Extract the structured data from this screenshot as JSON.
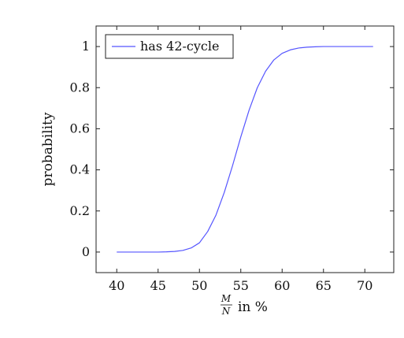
{
  "chart_data": {
    "type": "line",
    "xlabel": {
      "frac_num": "M",
      "frac_den": "N",
      "suffix": "in %"
    },
    "ylabel": "probability",
    "xlim": [
      37.5,
      73.5
    ],
    "ylim": [
      -0.1,
      1.1
    ],
    "xticks": [
      40,
      45,
      50,
      55,
      60,
      65,
      70
    ],
    "xtick_labels": [
      "40",
      "45",
      "50",
      "55",
      "60",
      "65",
      "70"
    ],
    "yticks": [
      0,
      0.2,
      0.4,
      0.6,
      0.8,
      1
    ],
    "ytick_labels": [
      "0",
      "0.2",
      "0.4",
      "0.6",
      "0.8",
      "1"
    ],
    "grid": false,
    "legend_position": "top-left",
    "series": [
      {
        "name": "has 42-cycle",
        "color": "#5555ff",
        "x": [
          40,
          41,
          42,
          43,
          44,
          45,
          46,
          47,
          48,
          49,
          50,
          51,
          52,
          53,
          54,
          55,
          56,
          57,
          58,
          59,
          60,
          61,
          62,
          63,
          64,
          65,
          66,
          67,
          68,
          69,
          70,
          71
        ],
        "y": [
          0,
          0,
          0,
          0,
          0,
          0,
          0.001,
          0.003,
          0.008,
          0.02,
          0.045,
          0.1,
          0.18,
          0.29,
          0.42,
          0.56,
          0.69,
          0.8,
          0.88,
          0.935,
          0.967,
          0.984,
          0.993,
          0.997,
          0.999,
          1,
          1,
          1,
          1,
          1,
          1,
          1
        ]
      }
    ]
  }
}
